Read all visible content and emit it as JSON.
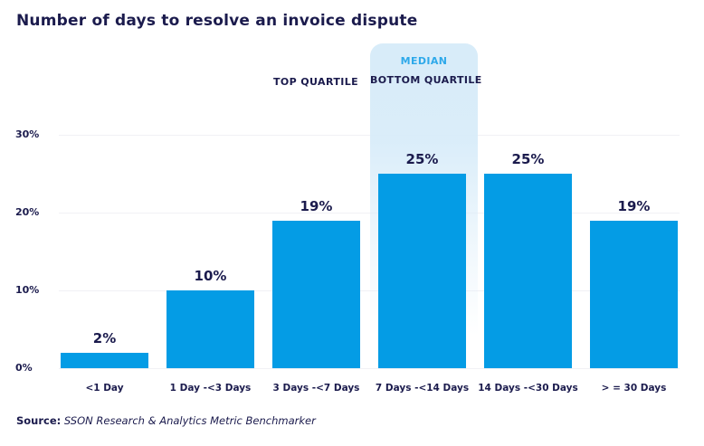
{
  "title": "Number of days to resolve an invoice dispute",
  "annotations": {
    "top_quartile": "TOP QUARTILE",
    "median": "MEDIAN",
    "bottom_quartile": "BOTTOM QUARTILE"
  },
  "source": {
    "label": "Source:",
    "text": " SSON Research & Analytics Metric Benchmarker"
  },
  "colors": {
    "bar": "#049ce5",
    "median_text": "#2ea9ea",
    "navy_text": "#1b1b4d",
    "highlight_band": "#d8ecf9",
    "gridline": "#f1f1f5"
  },
  "chart_data": {
    "type": "bar",
    "title": "Number of days to resolve an invoice dispute",
    "categories": [
      "<1 Day",
      "1 Day -<3 Days",
      "3 Days -<7 Days",
      "7 Days -<14 Days",
      "14 Days -<30 Days",
      "> = 30 Days"
    ],
    "values": [
      2,
      10,
      19,
      25,
      25,
      19
    ],
    "value_labels": [
      "2%",
      "10%",
      "19%",
      "25%",
      "25%",
      "19%"
    ],
    "xlabel": "",
    "ylabel": "",
    "ylim": [
      0,
      30
    ],
    "ytick_values": [
      0,
      10,
      20,
      30
    ],
    "ytick_labels": [
      "0%",
      "10%",
      "20%",
      "30%"
    ],
    "grid": true,
    "legend": "none",
    "highlighted_category_index": 3,
    "highlight_meaning": "MEDIAN / BOTTOM QUARTILE",
    "top_quartile_category_index": 2
  }
}
